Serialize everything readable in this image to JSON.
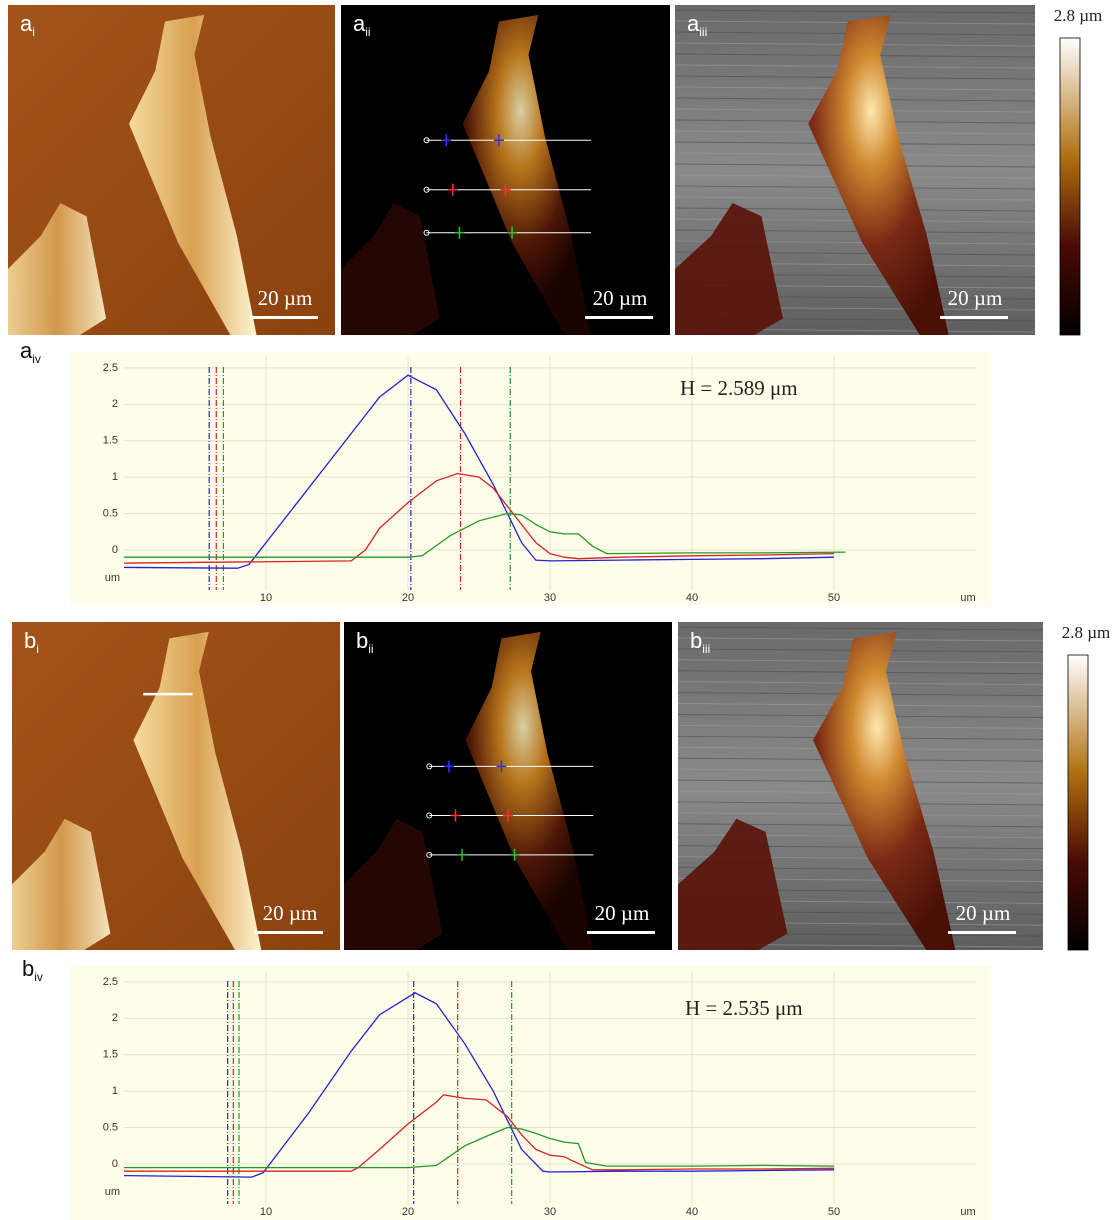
{
  "panels": [
    {
      "letter": "a",
      "sub": "i",
      "scale": "20 µm"
    },
    {
      "letter": "a",
      "sub": "ii",
      "scale": "20 µm"
    },
    {
      "letter": "a",
      "sub": "iii",
      "scale": "20 µm"
    },
    {
      "letter": "b",
      "sub": "i",
      "scale": "20 µm"
    },
    {
      "letter": "b",
      "sub": "ii",
      "scale": "20 µm"
    },
    {
      "letter": "b",
      "sub": "iii",
      "scale": "20 µm"
    }
  ],
  "colorbars": [
    {
      "label": "2.8 µm"
    },
    {
      "label": "2.8 µm"
    }
  ],
  "chart_data": [
    {
      "type": "line",
      "panel": "a",
      "panel_sub": "iv",
      "annotation": "H = 2.589 μm",
      "xlabel": "um",
      "ylabel": "um",
      "xlim": [
        0,
        60
      ],
      "ylim": [
        -0.55,
        2.65
      ],
      "xticks": [
        10,
        20,
        30,
        40,
        50
      ],
      "yticks": [
        0,
        0.5,
        1,
        1.5,
        2,
        2.5
      ],
      "grid": true,
      "series": [
        {
          "color": "#2323d8",
          "x": [
            0,
            8,
            8.8,
            12,
            16,
            18,
            20,
            22,
            24,
            26,
            27,
            28,
            29,
            30,
            35,
            40,
            45,
            50
          ],
          "values": [
            -0.24,
            -0.25,
            -0.2,
            0.6,
            1.6,
            2.1,
            2.4,
            2.2,
            1.6,
            0.9,
            0.5,
            0.1,
            -0.14,
            -0.15,
            -0.14,
            -0.13,
            -0.12,
            -0.1
          ]
        },
        {
          "color": "#d82323",
          "x": [
            0,
            16,
            17,
            18,
            20,
            22,
            23.5,
            25,
            26,
            27,
            28,
            29,
            30,
            31,
            32,
            35,
            40,
            45,
            50
          ],
          "values": [
            -0.18,
            -0.15,
            0,
            0.3,
            0.65,
            0.95,
            1.05,
            1.0,
            0.85,
            0.6,
            0.35,
            0.1,
            -0.05,
            -0.1,
            -0.12,
            -0.1,
            -0.08,
            -0.07,
            -0.05
          ]
        },
        {
          "color": "#239a23",
          "x": [
            0,
            20,
            21,
            23,
            25,
            27,
            28,
            29,
            30,
            31,
            32,
            33,
            34,
            40,
            45,
            50.8
          ],
          "values": [
            -0.1,
            -0.1,
            -0.08,
            0.2,
            0.4,
            0.5,
            0.48,
            0.35,
            0.25,
            0.22,
            0.22,
            0.05,
            -0.05,
            -0.04,
            -0.04,
            -0.03
          ]
        }
      ],
      "cursors": [
        {
          "color": "#2323d8",
          "x": 6.0
        },
        {
          "color": "#d82323",
          "x": 6.5
        },
        {
          "color": "#239a23",
          "x": 7.0
        },
        {
          "color": "#2323d8",
          "x": 20.2
        },
        {
          "color": "#d82323",
          "x": 23.7
        },
        {
          "color": "#239a23",
          "x": 27.2
        }
      ]
    },
    {
      "type": "line",
      "panel": "b",
      "panel_sub": "iv",
      "annotation": "H = 2.535 μm",
      "xlabel": "um",
      "ylabel": "um",
      "xlim": [
        0,
        60
      ],
      "ylim": [
        -0.55,
        2.65
      ],
      "xticks": [
        10,
        20,
        30,
        40,
        50
      ],
      "yticks": [
        0,
        0.5,
        1,
        1.5,
        2,
        2.5
      ],
      "grid": true,
      "series": [
        {
          "color": "#2323d8",
          "x": [
            0,
            9,
            9.8,
            13,
            16,
            18,
            20.5,
            22,
            24,
            26,
            27,
            28,
            29.5,
            30,
            35,
            40,
            45,
            50
          ],
          "values": [
            -0.16,
            -0.18,
            -0.12,
            0.7,
            1.55,
            2.05,
            2.35,
            2.2,
            1.65,
            1.0,
            0.6,
            0.2,
            -0.1,
            -0.11,
            -0.1,
            -0.1,
            -0.09,
            -0.08
          ]
        },
        {
          "color": "#d82323",
          "x": [
            0,
            16,
            16.5,
            18,
            20,
            22,
            22.5,
            24,
            25.5,
            27,
            28,
            29,
            30,
            31,
            31.5,
            33,
            35,
            40,
            45,
            50
          ],
          "values": [
            -0.1,
            -0.1,
            -0.05,
            0.2,
            0.55,
            0.85,
            0.95,
            0.9,
            0.88,
            0.65,
            0.4,
            0.2,
            0.12,
            0.1,
            0.05,
            -0.08,
            -0.08,
            -0.07,
            -0.07,
            -0.06
          ]
        },
        {
          "color": "#239a23",
          "x": [
            0,
            20,
            22,
            24,
            26,
            27,
            28,
            29,
            30,
            31,
            32,
            32.5,
            34,
            40,
            45,
            50
          ],
          "values": [
            -0.05,
            -0.05,
            -0.02,
            0.25,
            0.42,
            0.5,
            0.48,
            0.42,
            0.35,
            0.3,
            0.28,
            0.02,
            -0.03,
            -0.03,
            -0.02,
            -0.03
          ]
        }
      ],
      "cursors": [
        {
          "color": "#2323d8",
          "x": 7.3
        },
        {
          "color": "#d82323",
          "x": 7.7
        },
        {
          "color": "#239a23",
          "x": 8.1
        },
        {
          "color": "#2323d8",
          "x": 20.4
        },
        {
          "color": "#d82323",
          "x": 23.5
        },
        {
          "color": "#239a23",
          "x": 27.3
        }
      ]
    }
  ]
}
